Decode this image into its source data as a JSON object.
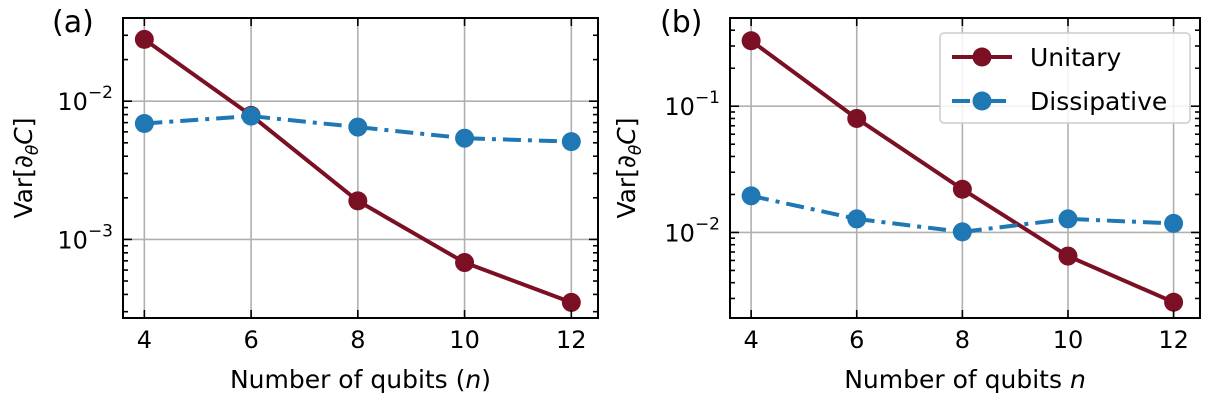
{
  "chart_data": [
    {
      "type": "line",
      "panel_label": "(a)",
      "xlabel": "Number of qubits (n)",
      "xlabel_parts": {
        "prefix": "Number of qubits (",
        "var": "n",
        "suffix": ")"
      },
      "ylabel": "Var[∂θC]",
      "ylabel_parts": {
        "a": "Var[",
        "b": "∂",
        "sub": "θ",
        "c": "C",
        "d": "]"
      },
      "yscale": "log",
      "xlim": [
        3.6,
        12.5
      ],
      "ylim": [
        0.00027,
        0.04
      ],
      "x_ticks": [
        4,
        6,
        8,
        10,
        12
      ],
      "x_tick_labels": [
        "4",
        "6",
        "8",
        "10",
        "12"
      ],
      "y_major_ticks": [
        {
          "value": 0.01,
          "base": "10",
          "exp": "−2"
        },
        {
          "value": 0.001,
          "base": "10",
          "exp": "−3"
        }
      ],
      "grid": true,
      "x": [
        4,
        6,
        8,
        10,
        12
      ],
      "series": [
        {
          "name": "Unitary",
          "color": "#7b1024",
          "style": "solid",
          "values": [
            0.028,
            0.0079,
            0.0019,
            0.00068,
            0.00035
          ]
        },
        {
          "name": "Dissipative",
          "color": "#1f77b4",
          "style": "dashdot",
          "values": [
            0.0069,
            0.0078,
            0.0065,
            0.0054,
            0.0051
          ]
        }
      ]
    },
    {
      "type": "line",
      "panel_label": "(b)",
      "xlabel": "Number of qubits n",
      "xlabel_parts": {
        "prefix": "Number of qubits ",
        "var": "n",
        "suffix": ""
      },
      "ylabel": "Var[∂θC]",
      "ylabel_parts": {
        "a": "Var[",
        "b": "∂",
        "sub": "θ",
        "c": "C",
        "d": "]"
      },
      "yscale": "log",
      "xlim": [
        3.6,
        12.5
      ],
      "ylim": [
        0.0021,
        0.5
      ],
      "x_ticks": [
        4,
        6,
        8,
        10,
        12
      ],
      "x_tick_labels": [
        "4",
        "6",
        "8",
        "10",
        "12"
      ],
      "y_major_ticks": [
        {
          "value": 0.1,
          "base": "10",
          "exp": "−1"
        },
        {
          "value": 0.01,
          "base": "10",
          "exp": "−2"
        }
      ],
      "grid": true,
      "legend": {
        "position": "top-right",
        "entries": [
          "Unitary",
          "Dissipative"
        ]
      },
      "x": [
        4,
        6,
        8,
        10,
        12
      ],
      "series": [
        {
          "name": "Unitary",
          "color": "#7b1024",
          "style": "solid",
          "values": [
            0.33,
            0.08,
            0.022,
            0.0065,
            0.0028
          ]
        },
        {
          "name": "Dissipative",
          "color": "#1f77b4",
          "style": "dashdot",
          "values": [
            0.0195,
            0.0128,
            0.0101,
            0.0128,
            0.0118
          ]
        }
      ]
    }
  ]
}
